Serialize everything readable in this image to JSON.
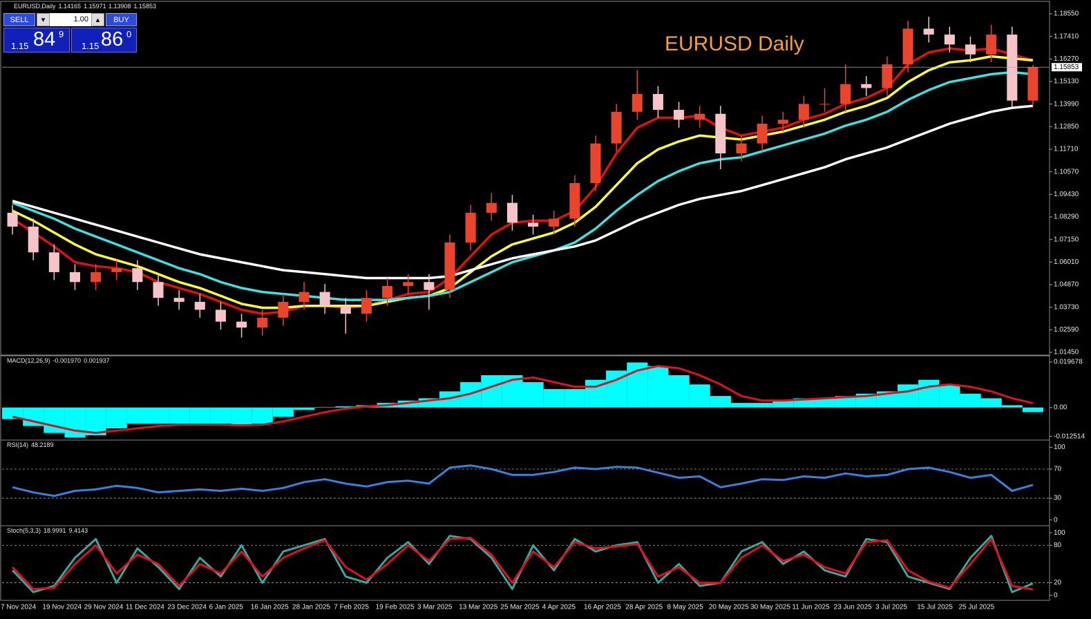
{
  "chart_data": [
    {
      "type": "candlestick",
      "title": "EURUSD,Daily",
      "annotation": "EURUSD Daily",
      "categories": [
        "7 Nov 2024",
        null,
        "19 Nov 2024",
        null,
        "29 Nov 2024",
        null,
        "11 Dec 2024",
        null,
        "23 Dec 2024",
        null,
        "6 Jan 2025",
        null,
        "16 Jan 2025",
        null,
        "28 Jan 2025",
        null,
        "7 Feb 2025",
        null,
        "19 Feb 2025",
        null,
        "3 Mar 2025",
        null,
        "13 Mar 2025",
        null,
        "25 Mar 2025",
        null,
        "4 Apr 2025",
        null,
        "16 Apr 2025",
        null,
        "28 Apr 2025",
        null,
        "8 May 2025",
        null,
        "20 May 2025",
        null,
        "30 May 2025",
        null,
        "11 Jun 2025",
        null,
        "23 Jun 2025",
        null,
        "3 Jul 2025",
        null,
        "15 Jul 2025",
        null,
        "25 Jul 2025",
        null,
        null,
        null
      ],
      "open": [
        1.085,
        1.078,
        1.065,
        1.055,
        1.05,
        1.055,
        1.057,
        1.05,
        1.042,
        1.04,
        1.036,
        1.03,
        1.027,
        1.032,
        1.04,
        1.045,
        1.038,
        1.034,
        1.042,
        1.048,
        1.05,
        1.046,
        1.07,
        1.085,
        1.09,
        1.08,
        1.078,
        1.082,
        1.1,
        1.12,
        1.136,
        1.145,
        1.137,
        1.132,
        1.135,
        1.115,
        1.12,
        1.13,
        1.132,
        1.14,
        1.14,
        1.15,
        1.148,
        1.16,
        1.178,
        1.175,
        1.17,
        1.165,
        1.175,
        1.14165
      ],
      "high": [
        1.089,
        1.082,
        1.069,
        1.059,
        1.059,
        1.061,
        1.061,
        1.054,
        1.046,
        1.044,
        1.04,
        1.034,
        1.036,
        1.044,
        1.05,
        1.049,
        1.042,
        1.046,
        1.052,
        1.054,
        1.054,
        1.074,
        1.089,
        1.095,
        1.094,
        1.084,
        1.086,
        1.104,
        1.124,
        1.14,
        1.157,
        1.149,
        1.141,
        1.139,
        1.139,
        1.124,
        1.134,
        1.136,
        1.144,
        1.148,
        1.16,
        1.154,
        1.164,
        1.182,
        1.184,
        1.179,
        1.174,
        1.18,
        1.179,
        1.15971
      ],
      "low": [
        1.074,
        1.061,
        1.051,
        1.046,
        1.046,
        1.051,
        1.046,
        1.038,
        1.036,
        1.032,
        1.026,
        1.022,
        1.023,
        1.028,
        1.036,
        1.034,
        1.024,
        1.03,
        1.038,
        1.044,
        1.036,
        1.042,
        1.066,
        1.081,
        1.076,
        1.074,
        1.074,
        1.078,
        1.096,
        1.116,
        1.132,
        1.133,
        1.128,
        1.128,
        1.107,
        1.111,
        1.116,
        1.126,
        1.128,
        1.136,
        1.136,
        1.144,
        1.144,
        1.156,
        1.171,
        1.166,
        1.161,
        1.161,
        1.138,
        1.13908
      ],
      "close": [
        1.078,
        1.065,
        1.055,
        1.05,
        1.055,
        1.057,
        1.05,
        1.042,
        1.04,
        1.036,
        1.03,
        1.027,
        1.032,
        1.04,
        1.045,
        1.038,
        1.034,
        1.042,
        1.048,
        1.05,
        1.046,
        1.07,
        1.085,
        1.09,
        1.08,
        1.078,
        1.082,
        1.1,
        1.12,
        1.136,
        1.145,
        1.137,
        1.132,
        1.135,
        1.115,
        1.12,
        1.13,
        1.132,
        1.14,
        1.14,
        1.15,
        1.148,
        1.16,
        1.178,
        1.175,
        1.17,
        1.165,
        1.175,
        1.14165,
        1.15853
      ],
      "up_color": "#e8452c",
      "down_color": "#f6c4c8",
      "series": [
        {
          "color": "#e01010",
          "values": [
            1.082,
            1.075,
            1.068,
            1.06,
            1.058,
            1.057,
            1.055,
            1.05,
            1.047,
            1.044,
            1.04,
            1.036,
            1.034,
            1.035,
            1.038,
            1.038,
            1.037,
            1.038,
            1.041,
            1.044,
            1.045,
            1.052,
            1.063,
            1.074,
            1.08,
            1.081,
            1.081,
            1.086,
            1.098,
            1.115,
            1.128,
            1.133,
            1.133,
            1.134,
            1.128,
            1.124,
            1.126,
            1.128,
            1.132,
            1.135,
            1.14,
            1.143,
            1.148,
            1.16,
            1.166,
            1.168,
            1.167,
            1.168,
            1.165,
            1.162
          ]
        },
        {
          "color": "#ffff40",
          "values": [
            1.086,
            1.081,
            1.075,
            1.069,
            1.064,
            1.061,
            1.058,
            1.054,
            1.05,
            1.047,
            1.043,
            1.039,
            1.037,
            1.037,
            1.038,
            1.038,
            1.038,
            1.038,
            1.04,
            1.042,
            1.043,
            1.047,
            1.055,
            1.063,
            1.069,
            1.072,
            1.075,
            1.08,
            1.088,
            1.099,
            1.11,
            1.117,
            1.121,
            1.124,
            1.123,
            1.122,
            1.124,
            1.126,
            1.129,
            1.132,
            1.136,
            1.139,
            1.143,
            1.151,
            1.157,
            1.161,
            1.162,
            1.164,
            1.163,
            1.162
          ]
        },
        {
          "color": "#40e0e0",
          "values": [
            1.09,
            1.086,
            1.082,
            1.077,
            1.073,
            1.069,
            1.065,
            1.061,
            1.057,
            1.054,
            1.05,
            1.047,
            1.045,
            1.044,
            1.043,
            1.042,
            1.041,
            1.041,
            1.041,
            1.042,
            1.043,
            1.045,
            1.05,
            1.055,
            1.06,
            1.063,
            1.066,
            1.07,
            1.077,
            1.086,
            1.094,
            1.101,
            1.106,
            1.11,
            1.112,
            1.113,
            1.116,
            1.119,
            1.122,
            1.125,
            1.129,
            1.132,
            1.136,
            1.142,
            1.147,
            1.151,
            1.153,
            1.155,
            1.156,
            1.155
          ]
        },
        {
          "color": "#ffffff",
          "values": [
            1.091,
            1.088,
            1.085,
            1.082,
            1.079,
            1.076,
            1.073,
            1.07,
            1.067,
            1.064,
            1.062,
            1.06,
            1.058,
            1.056,
            1.055,
            1.054,
            1.053,
            1.052,
            1.052,
            1.052,
            1.052,
            1.053,
            1.056,
            1.059,
            1.062,
            1.064,
            1.066,
            1.068,
            1.071,
            1.076,
            1.081,
            1.085,
            1.089,
            1.092,
            1.094,
            1.096,
            1.099,
            1.102,
            1.105,
            1.108,
            1.112,
            1.115,
            1.118,
            1.122,
            1.126,
            1.13,
            1.133,
            1.136,
            1.138,
            1.139
          ]
        }
      ],
      "ylim": [
        1.01345,
        1.19108
      ],
      "yticks": [
        {
          "value": 1.1855,
          "label": "1.18550"
        },
        {
          "value": 1.1741,
          "label": "1.17410"
        },
        {
          "value": 1.1627,
          "label": "1.16270"
        },
        {
          "value": 1.1513,
          "label": "1.15130"
        },
        {
          "value": 1.1399,
          "label": "1.13990"
        },
        {
          "value": 1.1285,
          "label": "1.12850"
        },
        {
          "value": 1.1171,
          "label": "1.11710"
        },
        {
          "value": 1.1057,
          "label": "1.10570"
        },
        {
          "value": 1.0943,
          "label": "1.09430"
        },
        {
          "value": 1.0829,
          "label": "1.08290"
        },
        {
          "value": 1.0715,
          "label": "1.07150"
        },
        {
          "value": 1.0601,
          "label": "1.06010"
        },
        {
          "value": 1.0487,
          "label": "1.04870"
        },
        {
          "value": 1.0373,
          "label": "1.03730"
        },
        {
          "value": 1.0259,
          "label": "1.02590"
        },
        {
          "value": 1.0145,
          "label": "1.01450"
        }
      ]
    },
    {
      "type": "macd",
      "title": "MACD(12,26,9)",
      "readout_label": "-0.001970",
      "series": [
        {
          "color": "#00ffff",
          "style": "histogram",
          "values": [
            -0.005,
            -0.008,
            -0.011,
            -0.013,
            -0.012,
            -0.009,
            -0.007,
            -0.007,
            -0.007,
            -0.007,
            -0.007,
            -0.008,
            -0.007,
            -0.004,
            -0.001,
            0.0002,
            0.0005,
            0.001,
            0.002,
            0.003,
            0.004,
            0.007,
            0.011,
            0.014,
            0.014,
            0.011,
            0.008,
            0.008,
            0.012,
            0.016,
            0.0195,
            0.018,
            0.014,
            0.01,
            0.005,
            0.002,
            0.002,
            0.003,
            0.004,
            0.004,
            0.005,
            0.006,
            0.007,
            0.01,
            0.012,
            0.01,
            0.006,
            0.004,
            0.001,
            -0.00197
          ]
        },
        {
          "color": "#e0101c",
          "style": "line",
          "values": [
            -0.004,
            -0.006,
            -0.008,
            -0.01,
            -0.011,
            -0.01,
            -0.009,
            -0.008,
            -0.0075,
            -0.0075,
            -0.0075,
            -0.0077,
            -0.0075,
            -0.006,
            -0.004,
            -0.002,
            -0.0005,
            0.0005,
            0.001,
            0.002,
            0.003,
            0.004,
            0.006,
            0.009,
            0.012,
            0.013,
            0.011,
            0.009,
            0.009,
            0.012,
            0.016,
            0.018,
            0.017,
            0.014,
            0.01,
            0.005,
            0.003,
            0.003,
            0.0035,
            0.004,
            0.0045,
            0.005,
            0.006,
            0.007,
            0.009,
            0.01,
            0.009,
            0.007,
            0.004,
            0.001937
          ]
        }
      ],
      "ylim": [
        -0.0138,
        0.0218
      ],
      "yticks": [
        0.019678,
        {
          "value": 0,
          "label": "0.00"
        },
        -0.012514
      ]
    },
    {
      "type": "line",
      "title": "RSI(14)",
      "series": [
        {
          "color": "#3a80e0",
          "values": [
            45,
            38,
            33,
            40,
            42,
            47,
            44,
            38,
            40,
            42,
            40,
            43,
            40,
            44,
            52,
            56,
            50,
            46,
            52,
            54,
            50,
            72,
            75,
            70,
            62,
            62,
            66,
            72,
            70,
            73,
            72,
            65,
            58,
            60,
            45,
            50,
            56,
            55,
            60,
            58,
            64,
            60,
            62,
            70,
            72,
            66,
            58,
            62,
            40,
            48.2189
          ]
        }
      ],
      "ylim": [
        -7,
        108
      ],
      "yticks": [
        100,
        70,
        30,
        0
      ],
      "levels": [
        70,
        30
      ]
    },
    {
      "type": "line",
      "title": "Stoch(5,3,3)",
      "series": [
        {
          "color": "#3aa8a0",
          "values": [
            40,
            5,
            15,
            60,
            90,
            20,
            75,
            45,
            10,
            60,
            30,
            80,
            20,
            70,
            80,
            90,
            30,
            20,
            60,
            85,
            50,
            95,
            90,
            60,
            10,
            80,
            40,
            90,
            70,
            80,
            85,
            20,
            50,
            15,
            20,
            70,
            85,
            50,
            70,
            40,
            30,
            90,
            85,
            30,
            20,
            10,
            60,
            95,
            5,
            18.9991
          ]
        },
        {
          "color": "#e01020",
          "values": [
            45,
            10,
            12,
            50,
            80,
            35,
            65,
            50,
            15,
            50,
            35,
            70,
            30,
            60,
            75,
            88,
            45,
            25,
            50,
            80,
            55,
            90,
            92,
            65,
            20,
            70,
            45,
            85,
            75,
            78,
            82,
            30,
            45,
            20,
            20,
            60,
            80,
            55,
            65,
            45,
            35,
            85,
            88,
            40,
            22,
            12,
            50,
            90,
            15,
            9.4143
          ]
        }
      ],
      "ylim": [
        -7,
        109
      ],
      "yticks": [
        100,
        80,
        20,
        0
      ],
      "levels": [
        80,
        20
      ]
    }
  ],
  "trade_panel": {
    "sell": "SELL",
    "buy": "BUY",
    "lot": "1.00",
    "bid": {
      "prefix": "1.15",
      "pips": "84",
      "point": "9"
    },
    "ask": {
      "prefix": "1.15",
      "pips": "86",
      "point": "0"
    }
  }
}
